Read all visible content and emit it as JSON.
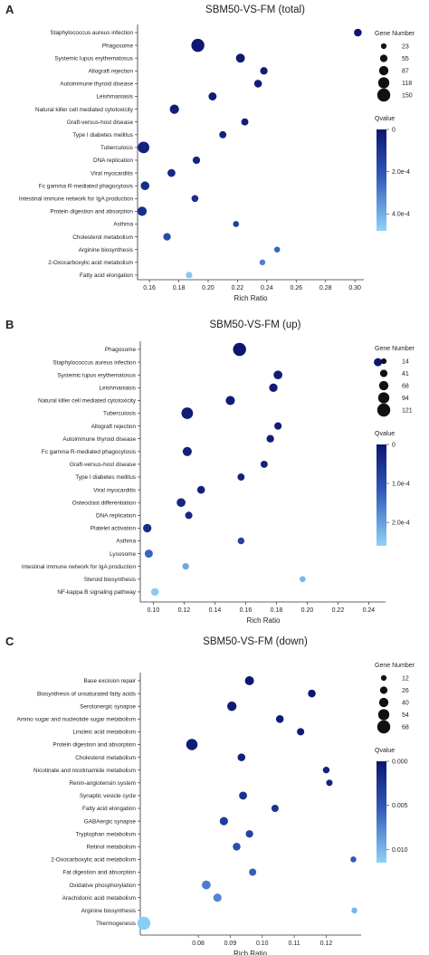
{
  "chart_data": [
    {
      "type": "scatter",
      "panel_label": "A",
      "title": "SBM50-VS-FM (total)",
      "xlabel": "Rich Ratio",
      "xlim": [
        0.155,
        0.303
      ],
      "xticks": [
        0.16,
        0.18,
        0.2,
        0.22,
        0.24,
        0.26,
        0.28,
        0.3
      ],
      "xtick_labels": [
        "0.16",
        "0.18",
        "0.20",
        "0.22",
        "0.24",
        "0.26",
        "0.28",
        "0.30"
      ],
      "size_legend_title": "Gene Number",
      "size_legend": [
        23,
        55,
        87,
        118,
        150
      ],
      "size_range": [
        23,
        150
      ],
      "color_legend_title": "Qvalue",
      "color_ticks": [
        {
          "v": 0,
          "label": "0"
        },
        {
          "v": 0.0002,
          "label": "2.0e-4"
        },
        {
          "v": 0.0004,
          "label": "4.0e-4"
        }
      ],
      "qmax": 0.00048,
      "points": [
        {
          "term": "Staphylococcus aureus infection",
          "x": 0.302,
          "gene": 60,
          "q": 0.0
        },
        {
          "term": "Phagosome",
          "x": 0.193,
          "gene": 150,
          "q": 1e-05
        },
        {
          "term": "Systemic lupus erythematosus",
          "x": 0.222,
          "gene": 80,
          "q": 1e-05
        },
        {
          "term": "Allograft rejection",
          "x": 0.238,
          "gene": 55,
          "q": 2e-05
        },
        {
          "term": "Autoimmune thyroid disease",
          "x": 0.234,
          "gene": 60,
          "q": 2e-05
        },
        {
          "term": "Leishmaniasis",
          "x": 0.203,
          "gene": 65,
          "q": 2e-05
        },
        {
          "term": "Natural killer cell mediated cytotoxicity",
          "x": 0.177,
          "gene": 85,
          "q": 3e-05
        },
        {
          "term": "Graft-versus-host disease",
          "x": 0.225,
          "gene": 50,
          "q": 3e-05
        },
        {
          "term": "Type I diabetes mellitus",
          "x": 0.21,
          "gene": 48,
          "q": 4e-05
        },
        {
          "term": "Tuberculosis",
          "x": 0.156,
          "gene": 125,
          "q": 4e-05
        },
        {
          "term": "DNA replication",
          "x": 0.192,
          "gene": 55,
          "q": 5e-05
        },
        {
          "term": "Viral myocarditis",
          "x": 0.175,
          "gene": 62,
          "q": 6e-05
        },
        {
          "term": "Fc gamma R-mediated phagocytosis",
          "x": 0.157,
          "gene": 75,
          "q": 7e-05
        },
        {
          "term": "Intestinal immune network for IgA production",
          "x": 0.191,
          "gene": 45,
          "q": 8e-05
        },
        {
          "term": "Protein digestion and absorption",
          "x": 0.155,
          "gene": 85,
          "q": 8e-05
        },
        {
          "term": "Asthma",
          "x": 0.219,
          "gene": 30,
          "q": 0.00014
        },
        {
          "term": "Cholesterol metabolism",
          "x": 0.172,
          "gene": 55,
          "q": 0.00017
        },
        {
          "term": "Arginine biosynthesis",
          "x": 0.247,
          "gene": 26,
          "q": 0.00024
        },
        {
          "term": "2-Oxocarboxylic acid metabolism",
          "x": 0.237,
          "gene": 26,
          "q": 0.0003
        },
        {
          "term": "Fatty acid elongation",
          "x": 0.187,
          "gene": 40,
          "q": 0.00046
        }
      ]
    },
    {
      "type": "scatter",
      "panel_label": "B",
      "title": "SBM50-VS-FM (up)",
      "xlabel": "Rich Ratio",
      "xlim": [
        0.095,
        0.248
      ],
      "xticks": [
        0.1,
        0.12,
        0.14,
        0.16,
        0.18,
        0.2,
        0.22,
        0.24
      ],
      "xtick_labels": [
        "0.10",
        "0.12",
        "0.14",
        "0.16",
        "0.18",
        "0.20",
        "0.22",
        "0.24"
      ],
      "size_legend_title": "Gene Number",
      "size_legend": [
        14,
        41,
        68,
        94,
        121
      ],
      "size_range": [
        14,
        121
      ],
      "color_legend_title": "Qvalue",
      "color_ticks": [
        {
          "v": 0,
          "label": "0"
        },
        {
          "v": 0.0001,
          "label": "1.0e-4"
        },
        {
          "v": 0.0002,
          "label": "2.0e-4"
        }
      ],
      "qmax": 0.00026,
      "points": [
        {
          "term": "Phagosome",
          "x": 0.156,
          "gene": 121,
          "q": 0.0
        },
        {
          "term": "Staphylococcus aureus infection",
          "x": 0.246,
          "gene": 50,
          "q": 0.0
        },
        {
          "term": "Systemic lupus erythematosus",
          "x": 0.181,
          "gene": 60,
          "q": 1e-05
        },
        {
          "term": "Leishmaniasis",
          "x": 0.178,
          "gene": 55,
          "q": 1e-05
        },
        {
          "term": "Natural killer cell mediated cytotoxicity",
          "x": 0.15,
          "gene": 65,
          "q": 1e-05
        },
        {
          "term": "Tuberculosis",
          "x": 0.122,
          "gene": 100,
          "q": 1e-05
        },
        {
          "term": "Allograft rejection",
          "x": 0.181,
          "gene": 40,
          "q": 1e-05
        },
        {
          "term": "Autoimmune thyroid disease",
          "x": 0.176,
          "gene": 42,
          "q": 1e-05
        },
        {
          "term": "Fc gamma R-mediated phagocytosis",
          "x": 0.122,
          "gene": 65,
          "q": 2e-05
        },
        {
          "term": "Graft-versus-host disease",
          "x": 0.172,
          "gene": 36,
          "q": 2e-05
        },
        {
          "term": "Type I diabetes mellitus",
          "x": 0.157,
          "gene": 36,
          "q": 2e-05
        },
        {
          "term": "Viral myocarditis",
          "x": 0.131,
          "gene": 45,
          "q": 2e-05
        },
        {
          "term": "Osteoclast differentiation",
          "x": 0.118,
          "gene": 60,
          "q": 3e-05
        },
        {
          "term": "DNA replication",
          "x": 0.123,
          "gene": 38,
          "q": 3e-05
        },
        {
          "term": "Platelet activation",
          "x": 0.096,
          "gene": 55,
          "q": 4e-05
        },
        {
          "term": "Asthma",
          "x": 0.157,
          "gene": 30,
          "q": 8e-05
        },
        {
          "term": "Lysosome",
          "x": 0.097,
          "gene": 50,
          "q": 0.00013
        },
        {
          "term": "Intestinal immune network for IgA production",
          "x": 0.121,
          "gene": 28,
          "q": 0.00021
        },
        {
          "term": "Steroid biosynthesis",
          "x": 0.197,
          "gene": 20,
          "q": 0.00023
        },
        {
          "term": "NF-kappa B signaling pathway",
          "x": 0.101,
          "gene": 45,
          "q": 0.00025
        }
      ]
    },
    {
      "type": "scatter",
      "panel_label": "C",
      "title": "SBM50-VS-FM (down)",
      "xlabel": "Rich Ratio",
      "xlim": [
        0.063,
        0.1295
      ],
      "xticks": [
        0.08,
        0.09,
        0.1,
        0.11,
        0.12
      ],
      "xtick_labels": [
        "0.08",
        "0.09",
        "0.10",
        "0.11",
        "0.12"
      ],
      "size_legend_title": "Gene Number",
      "size_legend": [
        12,
        26,
        40,
        54,
        68
      ],
      "size_range": [
        12,
        68
      ],
      "color_legend_title": "Qvalue",
      "color_ticks": [
        {
          "v": 0,
          "label": "0.000"
        },
        {
          "v": 0.005,
          "label": "0.005"
        },
        {
          "v": 0.01,
          "label": "0.010"
        }
      ],
      "qmax": 0.0115,
      "points": [
        {
          "term": "Base excision repair",
          "x": 0.096,
          "gene": 38,
          "q": 0.0
        },
        {
          "term": "Biosynthesis of unsaturated fatty acids",
          "x": 0.1155,
          "gene": 28,
          "q": 0.0002
        },
        {
          "term": "Serotonergic synapse",
          "x": 0.0905,
          "gene": 40,
          "q": 0.0003
        },
        {
          "term": "Amino sugar and nucleotide sugar metabolism",
          "x": 0.1055,
          "gene": 28,
          "q": 0.0004
        },
        {
          "term": "Linoleic acid metabolism",
          "x": 0.112,
          "gene": 25,
          "q": 0.0005
        },
        {
          "term": "Protein digestion and absorption",
          "x": 0.078,
          "gene": 55,
          "q": 0.0006
        },
        {
          "term": "Cholesterol metabolism",
          "x": 0.0935,
          "gene": 28,
          "q": 0.0008
        },
        {
          "term": "Nicotinate and nicotinamide metabolism",
          "x": 0.12,
          "gene": 20,
          "q": 0.0009
        },
        {
          "term": "Renin-angiotensin system",
          "x": 0.121,
          "gene": 18,
          "q": 0.001
        },
        {
          "term": "Synaptic vesicle cycle",
          "x": 0.094,
          "gene": 30,
          "q": 0.0022
        },
        {
          "term": "Fatty acid elongation",
          "x": 0.104,
          "gene": 24,
          "q": 0.0023
        },
        {
          "term": "GABAergic synapse",
          "x": 0.088,
          "gene": 32,
          "q": 0.003
        },
        {
          "term": "Tryptophan metabolism",
          "x": 0.096,
          "gene": 26,
          "q": 0.0035
        },
        {
          "term": "Retinol metabolism",
          "x": 0.092,
          "gene": 28,
          "q": 0.0045
        },
        {
          "term": "2-Oxocarboxylic acid metabolism",
          "x": 0.1285,
          "gene": 14,
          "q": 0.0053
        },
        {
          "term": "Fat digestion and absorption",
          "x": 0.097,
          "gene": 24,
          "q": 0.0055
        },
        {
          "term": "Oxidative phosphorylation",
          "x": 0.0825,
          "gene": 36,
          "q": 0.007
        },
        {
          "term": "Arachidonic acid metabolism",
          "x": 0.086,
          "gene": 32,
          "q": 0.0075
        },
        {
          "term": "Arginine biosynthesis",
          "x": 0.1288,
          "gene": 14,
          "q": 0.01
        },
        {
          "term": "Thermogenesis",
          "x": 0.063,
          "gene": 68,
          "q": 0.0112
        }
      ]
    }
  ],
  "colors": {
    "q_low": "#0d1670",
    "q_high": "#8fd3f7",
    "axis": "#333333"
  }
}
